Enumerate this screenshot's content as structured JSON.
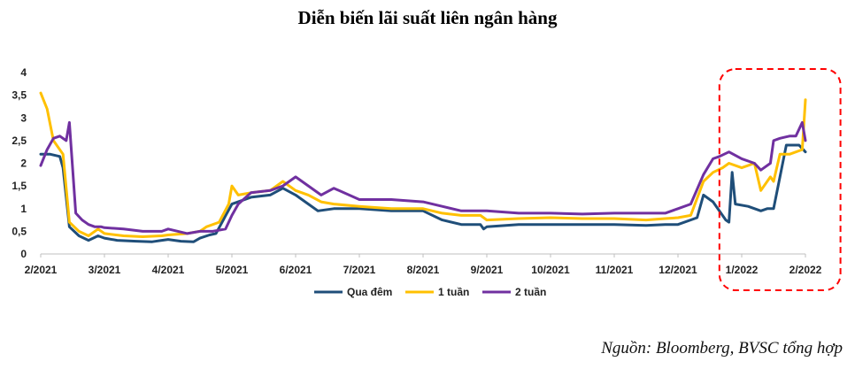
{
  "chart_data": {
    "type": "line",
    "title": "Diễn biến lãi suất liên ngân hàng",
    "xlabel": "",
    "ylabel": "",
    "ylim": [
      0,
      4
    ],
    "yticks": [
      "0",
      "0,5",
      "1",
      "1,5",
      "2",
      "2,5",
      "3",
      "3,5",
      "4"
    ],
    "xticks": [
      "2/2021",
      "3/2021",
      "4/2021",
      "5/2021",
      "6/2021",
      "7/2021",
      "8/2021",
      "9/2021",
      "10/2021",
      "11/2021",
      "12/2021",
      "1/2022",
      "2/2022"
    ],
    "x_months_range": [
      0,
      12
    ],
    "legend_position": "bottom",
    "highlight": {
      "from_month": 10.65,
      "to_month": 12.55,
      "style": "red dashed rounded box"
    },
    "series": [
      {
        "name": "Qua đêm",
        "color": "#1f4e79",
        "x": [
          0,
          0.15,
          0.3,
          0.35,
          0.45,
          0.6,
          0.75,
          0.9,
          1.0,
          1.2,
          1.5,
          1.75,
          1.9,
          2.0,
          2.2,
          2.4,
          2.5,
          2.65,
          2.75,
          3.0,
          3.3,
          3.6,
          3.8,
          4.0,
          4.2,
          4.35,
          4.6,
          5.0,
          5.5,
          6.0,
          6.3,
          6.6,
          6.9,
          6.95,
          7.0,
          7.5,
          8.0,
          8.5,
          9.0,
          9.5,
          9.8,
          10.0,
          10.3,
          10.4,
          10.55,
          10.75,
          10.8,
          10.85,
          10.9,
          11.1,
          11.3,
          11.4,
          11.5,
          11.6,
          11.7,
          11.75,
          11.9,
          12.0
        ],
        "values": [
          2.2,
          2.2,
          2.15,
          1.9,
          0.6,
          0.4,
          0.3,
          0.4,
          0.35,
          0.3,
          0.28,
          0.27,
          0.3,
          0.32,
          0.28,
          0.27,
          0.35,
          0.42,
          0.45,
          1.1,
          1.25,
          1.3,
          1.45,
          1.3,
          1.1,
          0.95,
          1.0,
          1.0,
          0.95,
          0.95,
          0.75,
          0.65,
          0.65,
          0.55,
          0.6,
          0.65,
          0.65,
          0.65,
          0.65,
          0.63,
          0.65,
          0.65,
          0.8,
          1.3,
          1.15,
          0.75,
          0.7,
          1.8,
          1.1,
          1.05,
          0.95,
          1.0,
          1.0,
          1.7,
          2.4,
          2.4,
          2.4,
          2.25
        ]
      },
      {
        "name": "1 tuần",
        "color": "#ffc000",
        "x": [
          0,
          0.1,
          0.2,
          0.35,
          0.45,
          0.6,
          0.75,
          0.9,
          1.0,
          1.3,
          1.6,
          1.9,
          2.0,
          2.3,
          2.5,
          2.6,
          2.8,
          2.95,
          3.0,
          3.1,
          3.3,
          3.6,
          3.8,
          4.0,
          4.2,
          4.4,
          4.6,
          5.0,
          5.5,
          6.0,
          6.3,
          6.6,
          6.9,
          7.0,
          7.5,
          8.0,
          8.5,
          9.0,
          9.5,
          9.8,
          10.0,
          10.2,
          10.4,
          10.55,
          10.7,
          10.8,
          11.0,
          11.2,
          11.3,
          11.45,
          11.5,
          11.6,
          11.75,
          11.95,
          12.0
        ],
        "values": [
          3.55,
          3.2,
          2.5,
          2.2,
          0.7,
          0.5,
          0.4,
          0.55,
          0.45,
          0.4,
          0.38,
          0.4,
          0.42,
          0.45,
          0.5,
          0.6,
          0.7,
          1.1,
          1.5,
          1.3,
          1.35,
          1.4,
          1.6,
          1.4,
          1.3,
          1.15,
          1.1,
          1.05,
          1.0,
          1.0,
          0.9,
          0.85,
          0.85,
          0.75,
          0.78,
          0.8,
          0.78,
          0.78,
          0.75,
          0.78,
          0.8,
          0.85,
          1.6,
          1.8,
          1.9,
          2.0,
          1.9,
          2.0,
          1.4,
          1.7,
          1.6,
          2.2,
          2.2,
          2.3,
          3.4
        ]
      },
      {
        "name": "2 tuần",
        "color": "#7030a0",
        "x": [
          0,
          0.1,
          0.2,
          0.3,
          0.4,
          0.45,
          0.55,
          0.65,
          0.75,
          0.85,
          0.95,
          1.0,
          1.3,
          1.6,
          1.9,
          2.0,
          2.3,
          2.5,
          2.7,
          2.9,
          3.0,
          3.1,
          3.3,
          3.6,
          3.8,
          4.0,
          4.2,
          4.4,
          4.6,
          5.0,
          5.5,
          6.0,
          6.3,
          6.6,
          6.9,
          7.0,
          7.5,
          8.0,
          8.5,
          9.0,
          9.5,
          9.8,
          10.0,
          10.2,
          10.4,
          10.55,
          10.65,
          10.8,
          11.0,
          11.2,
          11.3,
          11.45,
          11.5,
          11.6,
          11.75,
          11.85,
          11.95,
          12.0
        ],
        "values": [
          1.95,
          2.3,
          2.55,
          2.6,
          2.5,
          2.9,
          0.9,
          0.75,
          0.65,
          0.6,
          0.6,
          0.58,
          0.55,
          0.5,
          0.5,
          0.55,
          0.45,
          0.5,
          0.5,
          0.55,
          0.85,
          1.1,
          1.35,
          1.4,
          1.5,
          1.7,
          1.5,
          1.3,
          1.45,
          1.2,
          1.2,
          1.15,
          1.05,
          0.95,
          0.95,
          0.95,
          0.9,
          0.9,
          0.88,
          0.9,
          0.9,
          0.9,
          1.0,
          1.1,
          1.75,
          2.1,
          2.15,
          2.25,
          2.1,
          2.0,
          1.85,
          2.0,
          2.5,
          2.55,
          2.6,
          2.6,
          2.9,
          2.5
        ]
      }
    ]
  },
  "source_note": "Nguồn: Bloomberg, BVSC tổng hợp"
}
